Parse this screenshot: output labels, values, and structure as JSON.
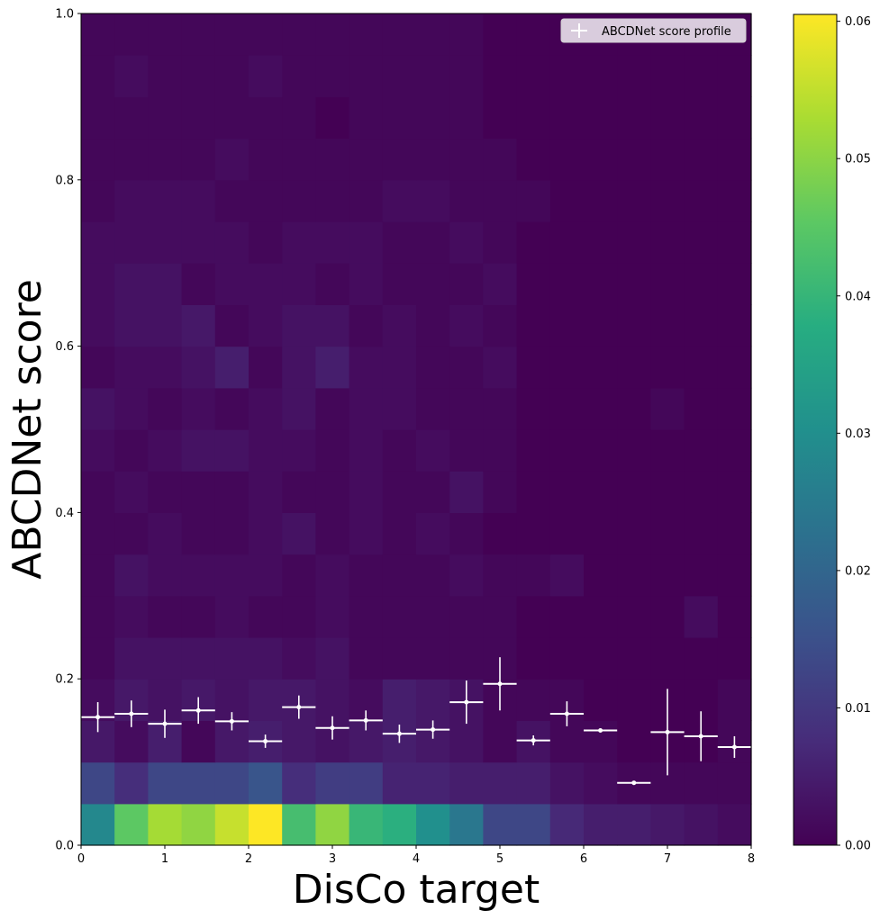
{
  "chart_data": {
    "type": "heatmap",
    "xlabel": "DisCo target",
    "ylabel": "ABCDNet score",
    "xlim": [
      0,
      8
    ],
    "ylim": [
      0,
      1
    ],
    "x_ticks": [
      "0",
      "1",
      "2",
      "3",
      "4",
      "5",
      "6",
      "7",
      "8"
    ],
    "y_ticks": [
      "0.0",
      "0.2",
      "0.4",
      "0.6",
      "0.8",
      "1.0"
    ],
    "x_bin_width": 0.4,
    "y_bin_height": 0.05,
    "colormap": "viridis",
    "color_range": [
      0,
      0.06
    ],
    "colorbar_ticks": [
      "0.00",
      "0.01",
      "0.02",
      "0.03",
      "0.04",
      "0.05",
      "0.06"
    ],
    "grid": false,
    "legend": {
      "position": "top-right",
      "entries": [
        "ABCDNet score profile"
      ]
    },
    "heatmap_rows_bottom_to_top": [
      [
        0.028,
        0.045,
        0.052,
        0.05,
        0.055,
        0.06,
        0.042,
        0.05,
        0.04,
        0.038,
        0.03,
        0.024,
        0.013,
        0.013,
        0.007,
        0.005,
        0.005,
        0.004,
        0.003,
        0.002
      ],
      [
        0.013,
        0.008,
        0.013,
        0.013,
        0.013,
        0.016,
        0.008,
        0.011,
        0.011,
        0.006,
        0.006,
        0.005,
        0.005,
        0.005,
        0.003,
        0.002,
        0.001,
        0.001,
        0.001,
        0.001
      ],
      [
        0.004,
        0.002,
        0.005,
        0.001,
        0.004,
        0.005,
        0.004,
        0.003,
        0.004,
        0.005,
        0.004,
        0.003,
        0.001,
        0.003,
        0.001,
        0.001,
        0.0,
        0.0,
        0.0,
        0.001
      ],
      [
        0.002,
        0.004,
        0.003,
        0.004,
        0.003,
        0.004,
        0.004,
        0.003,
        0.002,
        0.005,
        0.004,
        0.003,
        0.001,
        0.001,
        0.001,
        0.0,
        0.0,
        0.0,
        0.0,
        0.001
      ],
      [
        0.001,
        0.003,
        0.003,
        0.003,
        0.003,
        0.003,
        0.002,
        0.003,
        0.001,
        0.001,
        0.001,
        0.001,
        0.001,
        0.0,
        0.0,
        0.0,
        0.0,
        0.0,
        0.0,
        0.0
      ],
      [
        0.001,
        0.002,
        0.001,
        0.001,
        0.002,
        0.001,
        0.001,
        0.002,
        0.001,
        0.001,
        0.001,
        0.001,
        0.001,
        0.0,
        0.0,
        0.0,
        0.0,
        0.0,
        0.002,
        0.0
      ],
      [
        0.001,
        0.003,
        0.002,
        0.002,
        0.002,
        0.002,
        0.001,
        0.002,
        0.001,
        0.001,
        0.001,
        0.002,
        0.001,
        0.001,
        0.002,
        0.0,
        0.0,
        0.0,
        0.0,
        0.0
      ],
      [
        0.001,
        0.001,
        0.002,
        0.001,
        0.001,
        0.002,
        0.003,
        0.001,
        0.002,
        0.001,
        0.002,
        0.001,
        0.0,
        0.0,
        0.0,
        0.0,
        0.0,
        0.0,
        0.0,
        0.0
      ],
      [
        0.001,
        0.002,
        0.001,
        0.001,
        0.001,
        0.002,
        0.001,
        0.001,
        0.002,
        0.001,
        0.001,
        0.003,
        0.001,
        0.0,
        0.0,
        0.0,
        0.0,
        0.0,
        0.0,
        0.0
      ],
      [
        0.002,
        0.001,
        0.002,
        0.003,
        0.003,
        0.002,
        0.002,
        0.001,
        0.002,
        0.001,
        0.002,
        0.001,
        0.001,
        0.0,
        0.0,
        0.0,
        0.0,
        0.0,
        0.0,
        0.0
      ],
      [
        0.003,
        0.002,
        0.001,
        0.002,
        0.001,
        0.002,
        0.003,
        0.001,
        0.002,
        0.002,
        0.001,
        0.001,
        0.001,
        0.0,
        0.0,
        0.0,
        0.0,
        0.001,
        0.0,
        0.0
      ],
      [
        0.001,
        0.002,
        0.002,
        0.003,
        0.005,
        0.001,
        0.003,
        0.005,
        0.002,
        0.002,
        0.001,
        0.001,
        0.002,
        0.0,
        0.0,
        0.0,
        0.0,
        0.0,
        0.0,
        0.0
      ],
      [
        0.002,
        0.003,
        0.003,
        0.004,
        0.001,
        0.002,
        0.003,
        0.003,
        0.001,
        0.002,
        0.001,
        0.002,
        0.001,
        0.0,
        0.0,
        0.0,
        0.0,
        0.0,
        0.0,
        0.0
      ],
      [
        0.002,
        0.003,
        0.003,
        0.001,
        0.002,
        0.002,
        0.002,
        0.001,
        0.002,
        0.001,
        0.001,
        0.001,
        0.002,
        0.0,
        0.0,
        0.0,
        0.0,
        0.0,
        0.0,
        0.0
      ],
      [
        0.002,
        0.002,
        0.002,
        0.002,
        0.002,
        0.001,
        0.002,
        0.002,
        0.002,
        0.001,
        0.001,
        0.002,
        0.001,
        0.0,
        0.0,
        0.0,
        0.0,
        0.0,
        0.0,
        0.0
      ],
      [
        0.001,
        0.002,
        0.002,
        0.002,
        0.001,
        0.001,
        0.001,
        0.001,
        0.001,
        0.002,
        0.002,
        0.001,
        0.001,
        0.001,
        0.0,
        0.0,
        0.0,
        0.0,
        0.0,
        0.0
      ],
      [
        0.001,
        0.001,
        0.001,
        0.001,
        0.002,
        0.001,
        0.001,
        0.001,
        0.001,
        0.001,
        0.001,
        0.001,
        0.001,
        0.0,
        0.0,
        0.0,
        0.0,
        0.0,
        0.0,
        0.0
      ],
      [
        0.001,
        0.001,
        0.001,
        0.001,
        0.001,
        0.001,
        0.001,
        0.0,
        0.001,
        0.001,
        0.001,
        0.001,
        0.0,
        0.0,
        0.0,
        0.0,
        0.0,
        0.0,
        0.0,
        0.0
      ],
      [
        0.001,
        0.002,
        0.001,
        0.001,
        0.001,
        0.002,
        0.001,
        0.001,
        0.001,
        0.001,
        0.001,
        0.001,
        0.0,
        0.0,
        0.0,
        0.0,
        0.0,
        0.0,
        0.0,
        0.0
      ],
      [
        0.001,
        0.001,
        0.001,
        0.001,
        0.001,
        0.001,
        0.001,
        0.001,
        0.001,
        0.001,
        0.001,
        0.001,
        0.0,
        0.0,
        0.0,
        0.0,
        0.0,
        0.0,
        0.0,
        0.0
      ]
    ],
    "profile_series": {
      "name": "ABCDNet score profile",
      "color": "#ffffff",
      "x": [
        0.2,
        0.6,
        1.0,
        1.4,
        1.8,
        2.2,
        2.6,
        3.0,
        3.4,
        3.8,
        4.2,
        4.6,
        5.0,
        5.4,
        5.8,
        6.2,
        6.6,
        7.0,
        7.4,
        7.8
      ],
      "y": [
        0.154,
        0.158,
        0.146,
        0.162,
        0.149,
        0.125,
        0.166,
        0.141,
        0.15,
        0.134,
        0.139,
        0.172,
        0.194,
        0.126,
        0.158,
        0.138,
        0.075,
        0.136,
        0.131,
        0.118
      ],
      "x_err": 0.2,
      "y_err": [
        0.018,
        0.016,
        0.017,
        0.016,
        0.011,
        0.008,
        0.014,
        0.014,
        0.012,
        0.011,
        0.011,
        0.026,
        0.032,
        0.006,
        0.015,
        0.002,
        0.001,
        0.052,
        0.03,
        0.013
      ]
    }
  }
}
